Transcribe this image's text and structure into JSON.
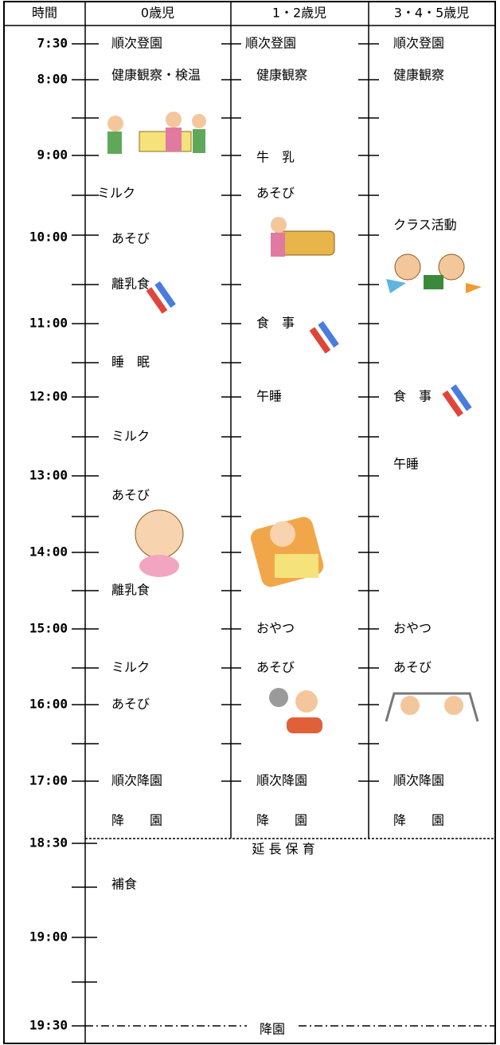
{
  "header": [
    "時間",
    "0歳児",
    "1・2歳児",
    "3・4・5歳児"
  ],
  "times": [
    "7:30",
    "8:00",
    "9:00",
    "10:00",
    "11:00",
    "12:00",
    "13:00",
    "14:00",
    "15:00",
    "16:00",
    "17:00",
    "18:30",
    "19:00",
    "19:30"
  ],
  "columns": [
    {
      "items": [
        "順次登園",
        "健康観察・検温",
        "ミルク",
        "あそび",
        "離乳食",
        "睡　眠",
        "ミルク",
        "あそび",
        "離乳食",
        "ミルク",
        "あそび",
        "順次降園",
        "降　　園"
      ]
    },
    {
      "items": [
        "順次登園",
        "健康観察",
        "牛　乳",
        "あそび",
        "食　事",
        "午睡",
        "おやつ",
        "あそび",
        "順次降園",
        "降　　園"
      ]
    },
    {
      "items": [
        "順次登園",
        "健康観察",
        "クラス活動",
        "食　事",
        "午睡",
        "おやつ",
        "あそび",
        "順次降園",
        "降　　園"
      ]
    }
  ],
  "extended": {
    "label": "延 長 保 育",
    "items": [
      "補食"
    ],
    "end": "降園"
  }
}
